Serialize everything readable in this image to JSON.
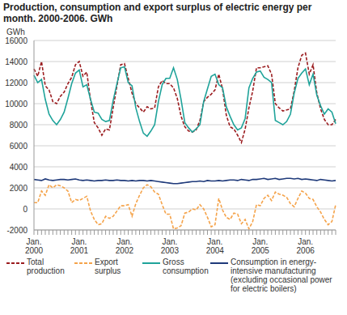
{
  "chart_data": {
    "type": "line",
    "title": "Production, consumption and export surplus of electric energy per month. 2000-2006. GWh",
    "y_label": "GWh",
    "categories": [
      "Jan. 2000",
      null,
      null,
      null,
      null,
      null,
      null,
      null,
      null,
      null,
      null,
      null,
      "Jan. 2001",
      null,
      null,
      null,
      null,
      null,
      null,
      null,
      null,
      null,
      null,
      null,
      "Jan. 2002",
      null,
      null,
      null,
      null,
      null,
      null,
      null,
      null,
      null,
      null,
      null,
      "Jan. 2003",
      null,
      null,
      null,
      null,
      null,
      null,
      null,
      null,
      null,
      null,
      null,
      "Jan. 2004",
      null,
      null,
      null,
      null,
      null,
      null,
      null,
      null,
      null,
      null,
      null,
      "Jan. 2005",
      null,
      null,
      null,
      null,
      null,
      null,
      null,
      null,
      null,
      null,
      null,
      "Jan. 2006",
      null,
      null,
      null,
      null,
      null,
      null,
      null,
      null
    ],
    "series": [
      {
        "name": "Total production",
        "color": "#9b1c1f",
        "line_style": "dashed",
        "values": [
          13300,
          12600,
          14000,
          11700,
          11300,
          10200,
          10000,
          10700,
          11100,
          11900,
          12500,
          13700,
          14000,
          12600,
          13000,
          10300,
          8200,
          7700,
          7000,
          7600,
          7500,
          9600,
          11700,
          13700,
          13800,
          12400,
          11000,
          10000,
          9600,
          9200,
          9700,
          9500,
          9600,
          11600,
          12200,
          11900,
          11900,
          11500,
          10500,
          8800,
          7800,
          7400,
          7300,
          7500,
          8400,
          10200,
          10600,
          10900,
          11300,
          12800,
          11400,
          8900,
          7800,
          7600,
          7000,
          6300,
          7600,
          9600,
          11200,
          13400,
          13400,
          13500,
          13600,
          12800,
          10000,
          9600,
          9300,
          9400,
          9500,
          11200,
          13400,
          14600,
          14800,
          12800,
          13700,
          11000,
          9500,
          8500,
          8000,
          8000,
          8500
        ]
      },
      {
        "name": "Export surplus",
        "color": "#f5a34a",
        "line_style": "dashed",
        "values": [
          600,
          600,
          1700,
          1300,
          2300,
          2000,
          2300,
          2200,
          2000,
          1700,
          600,
          900,
          800,
          1000,
          1200,
          -200,
          -1000,
          -1500,
          -1400,
          -700,
          -900,
          -700,
          -200,
          300,
          300,
          400,
          -700,
          500,
          1300,
          2000,
          2300,
          2100,
          1600,
          1400,
          400,
          -500,
          -500,
          -1900,
          -1800,
          -1600,
          -400,
          -300,
          0,
          -100,
          400,
          0,
          -800,
          -1700,
          -1500,
          1000,
          -100,
          -800,
          -1000,
          -400,
          -500,
          -1400,
          -1000,
          -1900,
          -1200,
          400,
          300,
          1000,
          1300,
          800,
          1600,
          1400,
          1300,
          1100,
          500,
          200,
          1000,
          1700,
          1500,
          1000,
          900,
          200,
          -300,
          -1000,
          -1500,
          -1200,
          400
        ]
      },
      {
        "name": "Gross consumption",
        "color": "#1fa39a",
        "line_style": "solid",
        "values": [
          12700,
          12000,
          12300,
          10400,
          9000,
          8400,
          8000,
          8500,
          9200,
          10500,
          11900,
          12900,
          13200,
          11600,
          11800,
          10400,
          9200,
          9100,
          8500,
          8300,
          8400,
          10300,
          11900,
          13400,
          13500,
          12000,
          11700,
          9600,
          8300,
          7200,
          6900,
          7400,
          8000,
          10200,
          11800,
          12400,
          12400,
          13400,
          12300,
          10400,
          8200,
          7700,
          7300,
          7600,
          8000,
          10200,
          11400,
          12600,
          12800,
          11800,
          11500,
          9700,
          8800,
          8000,
          7500,
          7700,
          8600,
          11500,
          12400,
          13000,
          13100,
          12500,
          12300,
          12000,
          8400,
          8200,
          8000,
          8300,
          9000,
          11000,
          12400,
          12900,
          13300,
          11800,
          12800,
          10800,
          9800,
          9000,
          9500,
          9200,
          8100
        ]
      },
      {
        "name": "Consumption in energy-intensive manufacturing (excluding occasional power for electric boilers)",
        "color": "#1f3a7a",
        "line_style": "solid",
        "values": [
          2800,
          2750,
          2700,
          2850,
          2750,
          2700,
          2750,
          2800,
          2800,
          2750,
          2800,
          2850,
          2750,
          2700,
          2750,
          2700,
          2650,
          2700,
          2700,
          2750,
          2700,
          2700,
          2750,
          2700,
          2700,
          2650,
          2700,
          2650,
          2700,
          2700,
          2650,
          2700,
          2650,
          2600,
          2550,
          2500,
          2450,
          2400,
          2400,
          2450,
          2500,
          2550,
          2600,
          2600,
          2650,
          2600,
          2700,
          2650,
          2650,
          2700,
          2650,
          2700,
          2750,
          2750,
          2700,
          2800,
          2750,
          2700,
          2800,
          2800,
          2850,
          2900,
          2800,
          2850,
          2900,
          2800,
          2850,
          2900,
          2900,
          2850,
          2900,
          2800,
          2850,
          2800,
          2750,
          2700,
          2800,
          2750,
          2700,
          2650,
          2700
        ]
      }
    ],
    "ylim": [
      -2000,
      16000
    ],
    "yticks": [
      -2000,
      0,
      2000,
      4000,
      6000,
      8000,
      10000,
      12000,
      14000,
      16000
    ],
    "grid": true,
    "legend": "bottom"
  }
}
